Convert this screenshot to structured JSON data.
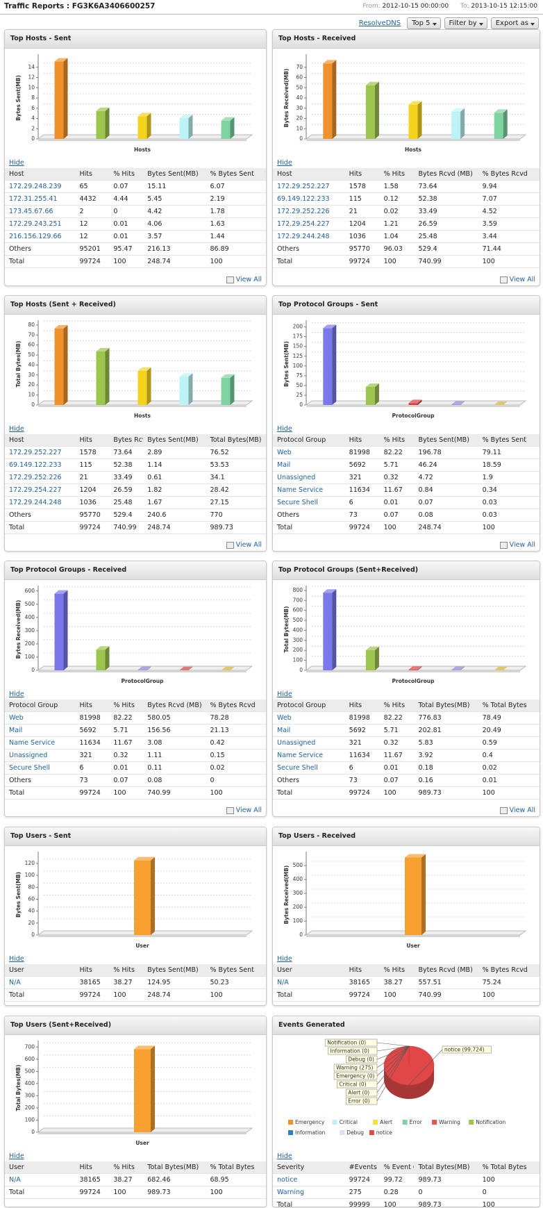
{
  "header": {
    "title": "Traffic Reports : FG3K6A3406600257",
    "from_label": "From:",
    "from": "2012-10-15 00:00:00",
    "to_label": "To:",
    "to": "2013-10-15 12:15:00"
  },
  "toolbar": {
    "link": "ResolveDNS",
    "buttons": [
      "Top 5",
      "Filter by",
      "Export as"
    ]
  },
  "panels": [
    {
      "title": "Top Hosts - Sent",
      "chart": {
        "type": "bar",
        "y_label": "Bytes Sent(MB)",
        "x_label": "Hosts",
        "values": [
          15.11,
          5.45,
          4.42,
          4.06,
          3.57
        ],
        "colors": [
          "#f0922b",
          "#9dc44d",
          "#f4d31f",
          "#bdf3f6",
          "#7fd3a0"
        ],
        "ylim": [
          0,
          16
        ],
        "yticks": [
          0,
          2,
          4,
          6,
          8,
          10,
          12,
          14
        ],
        "grid": true
      },
      "hide": "Hide",
      "table": {
        "columns": [
          "Host",
          "Hits",
          "% Hits",
          "Bytes Sent(MB)",
          "% Bytes Sent"
        ],
        "rows": [
          [
            "172.29.248.239",
            65,
            0.07,
            15.11,
            6.07
          ],
          [
            "172.31.255.41",
            4432,
            4.44,
            5.45,
            2.19
          ],
          [
            "173.45.67.66",
            2,
            0,
            4.42,
            1.78
          ],
          [
            "172.29.243.251",
            12,
            0.01,
            4.06,
            1.63
          ],
          [
            "216.156.129.66",
            12,
            0.01,
            3.57,
            1.44
          ]
        ],
        "others": [
          "Others",
          95201,
          95.47,
          216.13,
          86.89
        ],
        "total": [
          "Total",
          99724,
          100,
          248.74,
          100
        ]
      },
      "view_all": "View All"
    },
    {
      "title": "Top Hosts - Received",
      "chart": {
        "type": "bar",
        "y_label": "Bytes Received(MB)",
        "x_label": "Hosts",
        "values": [
          73.64,
          52.38,
          33.49,
          26.59,
          25.48
        ],
        "colors": [
          "#f0922b",
          "#9dc44d",
          "#f4d31f",
          "#bdf3f6",
          "#7fd3a0"
        ],
        "ylim": [
          0,
          80
        ],
        "yticks": [
          0,
          10,
          20,
          30,
          40,
          50,
          60,
          70
        ],
        "grid": true
      },
      "hide": "Hide",
      "table": {
        "columns": [
          "Host",
          "Hits",
          "% Hits",
          "Bytes Rcvd (MB)",
          "% Bytes Rcvd"
        ],
        "rows": [
          [
            "172.29.252.227",
            1578,
            1.58,
            73.64,
            9.94
          ],
          [
            "69.149.122.233",
            115,
            0.12,
            52.38,
            7.07
          ],
          [
            "172.29.252.226",
            21,
            0.02,
            33.49,
            4.52
          ],
          [
            "172.29.254.227",
            1204,
            1.21,
            26.59,
            3.59
          ],
          [
            "172.29.244.248",
            1036,
            1.04,
            25.48,
            3.44
          ]
        ],
        "others": [
          "Others",
          95770,
          96.03,
          529.4,
          71.44
        ],
        "total": [
          "Total",
          99724,
          100,
          740.99,
          100
        ]
      },
      "view_all": "View All"
    },
    {
      "title": "Top Hosts (Sent + Received)",
      "chart": {
        "type": "bar",
        "y_label": "Total Bytes(MB)",
        "x_label": "Hosts",
        "values": [
          76.52,
          53.53,
          34.1,
          28.42,
          27.15
        ],
        "colors": [
          "#f0922b",
          "#9dc44d",
          "#f4d31f",
          "#bdf3f6",
          "#7fd3a0"
        ],
        "ylim": [
          0,
          82
        ],
        "yticks": [
          0,
          10,
          20,
          30,
          40,
          50,
          60,
          70,
          80
        ],
        "grid": true
      },
      "hide": "Hide",
      "table": {
        "columns": [
          "Host",
          "Hits",
          "Bytes Rcvd (MB)",
          "Bytes Sent(MB)",
          "Total Bytes(MB)"
        ],
        "rows": [
          [
            "172.29.252.227",
            1578,
            73.64,
            2.89,
            76.52
          ],
          [
            "69.149.122.233",
            115,
            52.38,
            1.14,
            53.53
          ],
          [
            "172.29.252.226",
            21,
            33.49,
            0.61,
            34.1
          ],
          [
            "172.29.254.227",
            1204,
            26.59,
            1.82,
            28.42
          ],
          [
            "172.29.244.248",
            1036,
            25.48,
            1.67,
            27.15
          ]
        ],
        "others": [
          "Others",
          95770,
          529.4,
          240.6,
          770
        ],
        "total": [
          "Total",
          99724,
          740.99,
          248.74,
          989.73
        ]
      },
      "view_all": "View All"
    },
    {
      "title": "Top Protocol Groups - Sent",
      "chart": {
        "type": "bar",
        "y_label": "Bytes Sent(MB)",
        "x_label": "ProtocolGroup",
        "values": [
          196.78,
          46.24,
          4.72,
          0.84,
          0.07
        ],
        "colors": [
          "#7a78ea",
          "#9dc44d",
          "#d83c3c",
          "#8e82d6",
          "#d6ad2c"
        ],
        "ylim": [
          0,
          210
        ],
        "yticks": [
          0,
          25,
          50,
          75,
          100,
          125,
          150,
          175,
          200
        ],
        "grid": true
      },
      "hide": "Hide",
      "table": {
        "columns": [
          "Protocol Group",
          "Hits",
          "% Hits",
          "Bytes Sent(MB)",
          "% Bytes Sent"
        ],
        "rows": [
          [
            "Web",
            81998,
            82.22,
            196.78,
            79.11
          ],
          [
            "Mail",
            5692,
            5.71,
            46.24,
            18.59
          ],
          [
            "Unassigned",
            321,
            0.32,
            4.72,
            1.9
          ],
          [
            "Name Service",
            11634,
            11.67,
            0.84,
            0.34
          ],
          [
            "Secure Shell",
            6,
            0.01,
            0.07,
            0.03
          ]
        ],
        "others": [
          "Others",
          73,
          0.07,
          0.08,
          0.03
        ],
        "total": [
          "Total",
          99724,
          100,
          248.74,
          100
        ]
      },
      "view_all": "View All"
    },
    {
      "title": "Top Protocol Groups - Received",
      "chart": {
        "type": "bar",
        "y_label": "Bytes Received(MB)",
        "x_label": "ProtocolGroup",
        "values": [
          580.05,
          156.56,
          3.08,
          1.11,
          0.11
        ],
        "colors": [
          "#7a78ea",
          "#9dc44d",
          "#8e82d6",
          "#d83c3c",
          "#d6ad2c"
        ],
        "ylim": [
          0,
          620
        ],
        "yticks": [
          0,
          100,
          200,
          300,
          400,
          500,
          600
        ],
        "grid": true
      },
      "hide": "Hide",
      "table": {
        "columns": [
          "Protocol Group",
          "Hits",
          "% Hits",
          "Bytes Rcvd (MB)",
          "% Bytes Rcvd"
        ],
        "rows": [
          [
            "Web",
            81998,
            82.22,
            580.05,
            78.28
          ],
          [
            "Mail",
            5692,
            5.71,
            156.56,
            21.13
          ],
          [
            "Name Service",
            11634,
            11.67,
            3.08,
            0.42
          ],
          [
            "Unassigned",
            321,
            0.32,
            1.11,
            0.15
          ],
          [
            "Secure Shell",
            6,
            0.01,
            0.11,
            0.02
          ]
        ],
        "others": [
          "Others",
          73,
          0.07,
          0.08,
          0
        ],
        "total": [
          "Total",
          99724,
          100,
          740.99,
          100
        ]
      },
      "view_all": "View All"
    },
    {
      "title": "Top Protocol Groups (Sent+Received)",
      "chart": {
        "type": "bar",
        "y_label": "Total Bytes(MB)",
        "x_label": "ProtocolGroup",
        "values": [
          776.83,
          202.81,
          5.83,
          3.92,
          0.18
        ],
        "colors": [
          "#7a78ea",
          "#9dc44d",
          "#d83c3c",
          "#8e82d6",
          "#d6ad2c"
        ],
        "ylim": [
          0,
          820
        ],
        "yticks": [
          0,
          100,
          200,
          300,
          400,
          500,
          600,
          700,
          800
        ],
        "grid": true
      },
      "hide": "Hide",
      "table": {
        "columns": [
          "Protocol Group",
          "Hits",
          "% Hits",
          "Total Bytes(MB)",
          "% Total Bytes"
        ],
        "rows": [
          [
            "Web",
            81998,
            82.22,
            776.83,
            78.49
          ],
          [
            "Mail",
            5692,
            5.71,
            202.81,
            20.49
          ],
          [
            "Unassigned",
            321,
            0.32,
            5.83,
            0.59
          ],
          [
            "Name Service",
            11634,
            11.67,
            3.92,
            0.4
          ],
          [
            "Secure Shell",
            6,
            0.01,
            0.18,
            0.02
          ]
        ],
        "others": [
          "Others",
          73,
          0.07,
          0.16,
          0.01
        ],
        "total": [
          "Total",
          99724,
          100,
          989.73,
          100
        ]
      },
      "view_all": "View All"
    },
    {
      "title": "Top Users - Sent",
      "chart": {
        "type": "bar",
        "y_label": "Bytes Sent(MB)",
        "x_label": "User",
        "values": [
          124.95
        ],
        "colors": [
          "#f7a030"
        ],
        "ylim": [
          0,
          135
        ],
        "yticks": [
          0,
          20,
          40,
          60,
          80,
          100,
          120
        ],
        "grid": true
      },
      "hide": "Hide",
      "table": {
        "columns": [
          "User",
          "Hits",
          "% Hits",
          "Bytes Sent(MB)",
          "% Bytes Sent"
        ],
        "rows": [
          [
            "N/A",
            38165,
            38.27,
            124.95,
            50.23
          ]
        ],
        "total": [
          "Total",
          99724,
          100,
          248.74,
          100
        ]
      }
    },
    {
      "title": "Top Users - Received",
      "chart": {
        "type": "bar",
        "y_label": "Bytes Received(MB)",
        "x_label": "User",
        "values": [
          557.51
        ],
        "colors": [
          "#f7a030"
        ],
        "ylim": [
          0,
          580
        ],
        "yticks": [
          0,
          100,
          200,
          300,
          400,
          500
        ],
        "grid": true
      },
      "hide": "Hide",
      "table": {
        "columns": [
          "User",
          "Hits",
          "% Hits",
          "Bytes Rcvd (MB)",
          "% Bytes Rcvd"
        ],
        "rows": [
          [
            "N/A",
            38165,
            38.27,
            557.51,
            75.24
          ]
        ],
        "total": [
          "Total",
          99724,
          100,
          740.99,
          100
        ]
      }
    },
    {
      "title": "Top Users (Sent+Received)",
      "chart": {
        "type": "bar",
        "y_label": "Total Bytes(MB)",
        "x_label": "User",
        "values": [
          682.46
        ],
        "colors": [
          "#f7a030"
        ],
        "ylim": [
          0,
          730
        ],
        "yticks": [
          0,
          100,
          200,
          300,
          400,
          500,
          600,
          700
        ],
        "grid": true
      },
      "hide": "Hide",
      "table": {
        "columns": [
          "User",
          "Hits",
          "% Hits",
          "Total Bytes(MB)",
          "% Total Bytes"
        ],
        "rows": [
          [
            "N/A",
            38165,
            38.27,
            682.46,
            68.95
          ]
        ],
        "total": [
          "Total",
          99724,
          100,
          989.73,
          100
        ]
      }
    },
    {
      "title": "Events Generated",
      "chart": {
        "type": "pie",
        "legend": "bottom",
        "series": [
          {
            "name": "Emergency",
            "color": "#f0922b",
            "value": 0,
            "label": "Emergency (0)"
          },
          {
            "name": "Critical",
            "color": "#bdf3f6",
            "value": 0,
            "label": "Critical (0)"
          },
          {
            "name": "Alert",
            "color": "#f4e23a",
            "value": 0,
            "label": "Alert (0)"
          },
          {
            "name": "Error",
            "color": "#7fd3a0",
            "value": 0,
            "label": "Error (0)"
          },
          {
            "name": "Warning",
            "color": "#e05a4a",
            "value": 275,
            "label": "Warning (275)"
          },
          {
            "name": "Notification",
            "color": "#9dc44d",
            "value": 0,
            "label": "Notification (0)"
          },
          {
            "name": "Information",
            "color": "#2b7fc0",
            "value": 0,
            "label": "Information (0)"
          },
          {
            "name": "Debug",
            "color": "#dde0ea",
            "value": 0,
            "label": "Debug (0)"
          },
          {
            "name": "notice",
            "color": "#e04848",
            "value": 99724,
            "label": "notice (99,724)"
          }
        ]
      },
      "hide": "Hide",
      "table": {
        "columns": [
          "Severity",
          "#Events",
          "% Event Count",
          "Total Bytes(MB)",
          "% Total Bytes"
        ],
        "rows": [
          [
            "notice",
            99724,
            99.72,
            989.73,
            100
          ],
          [
            "Warning",
            275,
            0.28,
            0,
            0
          ]
        ],
        "total": [
          "Total",
          99999,
          100,
          989.73,
          100
        ]
      }
    }
  ]
}
